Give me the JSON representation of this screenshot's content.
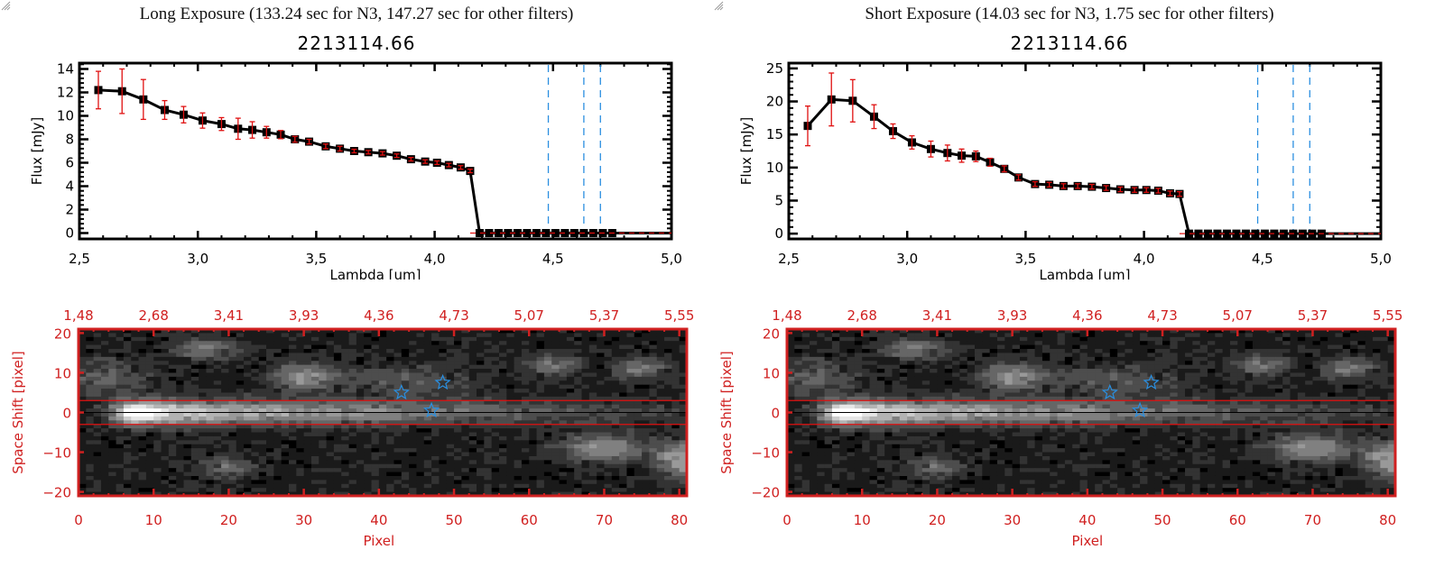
{
  "panels": [
    {
      "exposure_title": "Long Exposure (133.24 sec for N3, 147.27 sec for other filters)",
      "object_id": "2213114.66"
    },
    {
      "exposure_title": "Short Exposure (14.03 sec for N3, 1.75 sec for other filters)",
      "object_id": "2213114.66"
    }
  ],
  "colors": {
    "spectrum_line": "#000000",
    "error_bar": "#e01010",
    "marker_lines": "#2a8fe0",
    "image_axes": "#d02020",
    "star_marker": "#2a8fe0",
    "aperture_lines": "#e01010"
  },
  "chart_data": [
    {
      "type": "line",
      "title": "2213114.66",
      "subtitle": "Long Exposure (133.24 sec for N3, 147.27 sec for other filters)",
      "xlabel": "Lambda [um]",
      "ylabel": "Flux [mJy]",
      "xlim": [
        2.5,
        5.0
      ],
      "ylim": [
        -0.5,
        14.5
      ],
      "xticks": [
        "2.5",
        "3.0",
        "3.5",
        "4.0",
        "4.5",
        "5.0"
      ],
      "xtick_values": [
        2.5,
        3.0,
        3.5,
        4.0,
        4.5,
        5.0
      ],
      "yticks": [
        "0",
        "2",
        "4",
        "6",
        "8",
        "10",
        "12",
        "14"
      ],
      "ytick_values": [
        0,
        2,
        4,
        6,
        8,
        10,
        12,
        14
      ],
      "vlines": [
        4.48,
        4.63,
        4.7
      ],
      "zero_line": true,
      "series": [
        {
          "name": "flux",
          "x": [
            2.58,
            2.68,
            2.77,
            2.86,
            2.94,
            3.02,
            3.1,
            3.17,
            3.23,
            3.29,
            3.35,
            3.41,
            3.47,
            3.54,
            3.6,
            3.66,
            3.72,
            3.78,
            3.84,
            3.9,
            3.96,
            4.01,
            4.06,
            4.11,
            4.15,
            4.19,
            4.23,
            4.27,
            4.31,
            4.35,
            4.39,
            4.43,
            4.47,
            4.51,
            4.55,
            4.59,
            4.63,
            4.67,
            4.71,
            4.75
          ],
          "y": [
            12.2,
            12.1,
            11.4,
            10.5,
            10.1,
            9.6,
            9.3,
            8.9,
            8.8,
            8.6,
            8.4,
            8.0,
            7.8,
            7.4,
            7.2,
            7.0,
            6.9,
            6.8,
            6.6,
            6.3,
            6.1,
            6.0,
            5.8,
            5.6,
            5.3,
            0,
            0,
            0,
            0,
            0,
            0,
            0,
            0,
            0,
            0,
            0,
            0,
            0,
            0,
            0
          ],
          "err": [
            1.6,
            1.9,
            1.7,
            0.8,
            0.7,
            0.65,
            0.55,
            0.9,
            0.7,
            0.5,
            0.35,
            0.25,
            0.2,
            0.2,
            0.2,
            0.15,
            0.15,
            0.15,
            0.15,
            0.15,
            0.15,
            0.15,
            0.15,
            0.15,
            0.15,
            0,
            0,
            0,
            0,
            0,
            0,
            0,
            0,
            0,
            0,
            0,
            0,
            0,
            0,
            0
          ]
        }
      ]
    },
    {
      "type": "line",
      "title": "2213114.66",
      "subtitle": "Short Exposure (14.03 sec for N3, 1.75 sec for other filters)",
      "xlabel": "Lambda [um]",
      "ylabel": "Flux [mJy]",
      "xlim": [
        2.5,
        5.0
      ],
      "ylim": [
        -0.8,
        25.8
      ],
      "xticks": [
        "2.5",
        "3.0",
        "3.5",
        "4.0",
        "4.5",
        "5.0"
      ],
      "xtick_values": [
        2.5,
        3.0,
        3.5,
        4.0,
        4.5,
        5.0
      ],
      "yticks": [
        "0",
        "5",
        "10",
        "15",
        "20",
        "25"
      ],
      "ytick_values": [
        0,
        5,
        10,
        15,
        20,
        25
      ],
      "vlines": [
        4.48,
        4.63,
        4.7
      ],
      "zero_line": true,
      "series": [
        {
          "name": "flux",
          "x": [
            2.58,
            2.68,
            2.77,
            2.86,
            2.94,
            3.02,
            3.1,
            3.17,
            3.23,
            3.29,
            3.35,
            3.41,
            3.47,
            3.54,
            3.6,
            3.66,
            3.72,
            3.78,
            3.84,
            3.9,
            3.96,
            4.01,
            4.06,
            4.11,
            4.15,
            4.19,
            4.23,
            4.27,
            4.31,
            4.35,
            4.39,
            4.43,
            4.47,
            4.51,
            4.55,
            4.59,
            4.63,
            4.67,
            4.71,
            4.75
          ],
          "y": [
            16.3,
            20.3,
            20.1,
            17.7,
            15.5,
            13.8,
            12.8,
            12.2,
            11.8,
            11.7,
            10.8,
            9.8,
            8.5,
            7.5,
            7.4,
            7.2,
            7.2,
            7.1,
            6.9,
            6.7,
            6.6,
            6.6,
            6.5,
            6.1,
            6.0,
            0,
            0,
            0,
            0,
            0,
            0,
            0,
            0,
            0,
            0,
            0,
            0,
            0,
            0,
            0
          ],
          "err": [
            3.0,
            4.0,
            3.2,
            1.8,
            1.1,
            1.0,
            1.2,
            1.2,
            1.0,
            0.8,
            0.6,
            0.45,
            0.4,
            0.35,
            0.35,
            0.35,
            0.35,
            0.35,
            0.35,
            0.35,
            0.35,
            0.35,
            0.35,
            0.35,
            0.35,
            0,
            0,
            0,
            0,
            0,
            0,
            0,
            0,
            0,
            0,
            0,
            0,
            0,
            0,
            0
          ]
        }
      ]
    },
    {
      "type": "heatmap",
      "title": "Spectral image (long exposure)",
      "xlabel": "Pixel",
      "ylabel": "Space Shift [pixel]",
      "xlim": [
        0,
        81
      ],
      "ylim": [
        -21,
        21
      ],
      "xticks": [
        "0",
        "10",
        "20",
        "30",
        "40",
        "50",
        "60",
        "70",
        "80"
      ],
      "xtick_values": [
        0,
        10,
        20,
        30,
        40,
        50,
        60,
        70,
        80
      ],
      "top_xticks": [
        "1.48",
        "2.68",
        "3.41",
        "3.93",
        "4.36",
        "4.73",
        "5.07",
        "5.37",
        "5.55"
      ],
      "yticks": [
        "20",
        "10",
        "0",
        "-10",
        "-20"
      ],
      "ytick_values": [
        20,
        10,
        0,
        -10,
        -20
      ],
      "aperture_lines": [
        3,
        -3
      ],
      "center_line": 0,
      "stars": [
        [
          43,
          5
        ],
        [
          48.5,
          7.5
        ],
        [
          47,
          0.5
        ]
      ],
      "sources": [
        {
          "x": 8,
          "y": 0,
          "peak": 1.0,
          "sx": 2.5,
          "sy": 2.2,
          "tail": true
        },
        {
          "x": 30,
          "y": 9,
          "peak": 0.45,
          "sx": 3,
          "sy": 2.5
        },
        {
          "x": 17,
          "y": 16,
          "peak": 0.35,
          "sx": 3,
          "sy": 2
        },
        {
          "x": 63,
          "y": 12,
          "peak": 0.35,
          "sx": 2.5,
          "sy": 2
        },
        {
          "x": 75,
          "y": 11,
          "peak": 0.35,
          "sx": 2.5,
          "sy": 2
        },
        {
          "x": 70,
          "y": -9,
          "peak": 0.45,
          "sx": 4,
          "sy": 2.5
        },
        {
          "x": 80,
          "y": -12,
          "peak": 0.55,
          "sx": 2,
          "sy": 3
        },
        {
          "x": 20,
          "y": -14,
          "peak": 0.3,
          "sx": 2.5,
          "sy": 2
        },
        {
          "x": 3,
          "y": 9,
          "peak": 0.28,
          "sx": 4,
          "sy": 3
        },
        {
          "x": 44,
          "y": 8,
          "peak": 0.22,
          "sx": 6,
          "sy": 3
        }
      ]
    },
    {
      "type": "heatmap",
      "title": "Spectral image (short exposure)",
      "xlabel": "Pixel",
      "ylabel": "Space Shift [pixel]",
      "xlim": [
        0,
        81
      ],
      "ylim": [
        -21,
        21
      ],
      "xticks": [
        "0",
        "10",
        "20",
        "30",
        "40",
        "50",
        "60",
        "70",
        "80"
      ],
      "xtick_values": [
        0,
        10,
        20,
        30,
        40,
        50,
        60,
        70,
        80
      ],
      "top_xticks": [
        "1.48",
        "2.68",
        "3.41",
        "3.93",
        "4.36",
        "4.73",
        "5.07",
        "5.37",
        "5.55"
      ],
      "yticks": [
        "20",
        "10",
        "0",
        "-10",
        "-20"
      ],
      "ytick_values": [
        20,
        10,
        0,
        -10,
        -20
      ],
      "aperture_lines": [
        3,
        -3
      ],
      "center_line": 0,
      "stars": [
        [
          43,
          5
        ],
        [
          48.5,
          7.5
        ],
        [
          47,
          0.5
        ]
      ],
      "sources": [
        {
          "x": 8,
          "y": 0,
          "peak": 1.0,
          "sx": 2.5,
          "sy": 2.2,
          "tail": true
        },
        {
          "x": 30,
          "y": 9,
          "peak": 0.45,
          "sx": 3,
          "sy": 2.5
        },
        {
          "x": 17,
          "y": 16,
          "peak": 0.35,
          "sx": 3,
          "sy": 2
        },
        {
          "x": 63,
          "y": 12,
          "peak": 0.35,
          "sx": 2.5,
          "sy": 2
        },
        {
          "x": 75,
          "y": 11,
          "peak": 0.35,
          "sx": 2.5,
          "sy": 2
        },
        {
          "x": 70,
          "y": -9,
          "peak": 0.45,
          "sx": 4,
          "sy": 2.5
        },
        {
          "x": 80,
          "y": -12,
          "peak": 0.55,
          "sx": 2,
          "sy": 3
        },
        {
          "x": 20,
          "y": -14,
          "peak": 0.3,
          "sx": 2.5,
          "sy": 2
        },
        {
          "x": 3,
          "y": 9,
          "peak": 0.28,
          "sx": 4,
          "sy": 3
        },
        {
          "x": 44,
          "y": 8,
          "peak": 0.22,
          "sx": 6,
          "sy": 3
        }
      ]
    }
  ]
}
